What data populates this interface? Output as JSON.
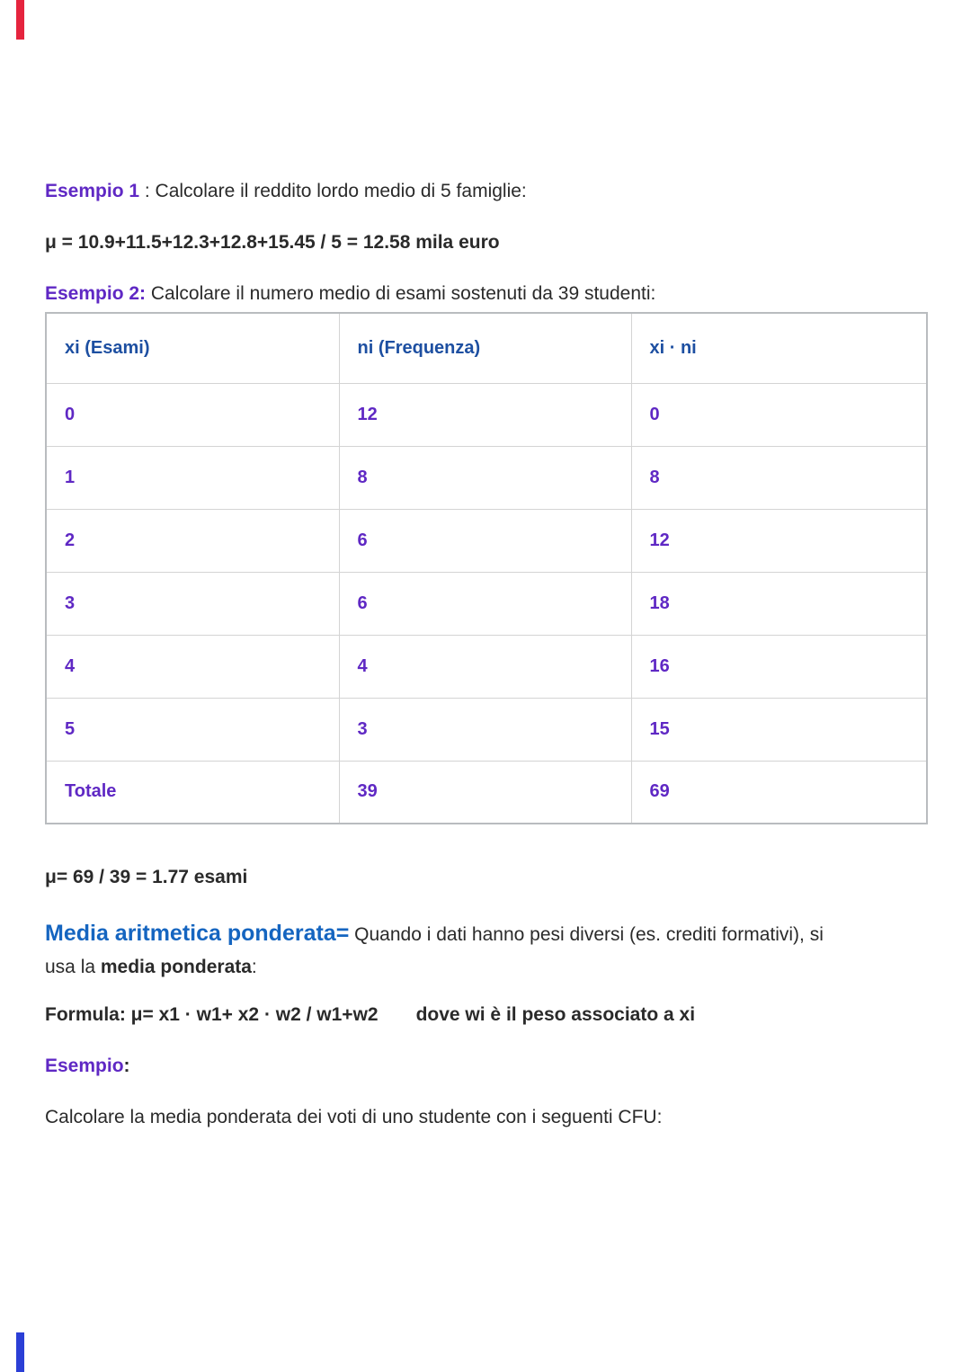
{
  "colors": {
    "purple": "#5f28c4",
    "heading_blue": "#1565c0",
    "table_header_blue": "#1d4fa1",
    "body_text": "#2a2a2a",
    "top_bar_red": "#e5243e",
    "bottom_bar_blue": "#2b3fd6"
  },
  "document": {
    "example1": {
      "label": "Esempio 1",
      "rest": " : Calcolare il reddito lordo medio di 5 famiglie:"
    },
    "formula1": "μ = 10.9+11.5+12.3+12.8+15.45 / 5 = 12.58 mila euro",
    "example2": {
      "label": "Esempio 2:",
      "rest": " Calcolare il numero medio di esami sostenuti da 39 studenti:"
    },
    "table": {
      "headers": [
        "xi (Esami)",
        "ni (Frequenza)",
        "xi · ni"
      ],
      "rows": [
        [
          "0",
          "12",
          "0"
        ],
        [
          "1",
          "8",
          "8"
        ],
        [
          "2",
          "6",
          "12"
        ],
        [
          "3",
          "6",
          "18"
        ],
        [
          "4",
          "4",
          "16"
        ],
        [
          "5",
          "3",
          "15"
        ],
        [
          "Totale",
          "39",
          "69"
        ]
      ]
    },
    "mean_result": "μ= 69 / 39 = 1.77 esami",
    "weighted": {
      "heading": "Media aritmetica ponderata=",
      "line1_text": " Quando i dati hanno pesi diversi (es. crediti formativi), si",
      "line2_pre": "usa la ",
      "bold_term": "media ponderata",
      "line2_post": ":"
    },
    "formula2": {
      "left": "Formula: μ= x1 · w1+ x2 · w2 / w1+w2",
      "right": "dove wi è il peso associato a xi"
    },
    "example3": {
      "label": "Esempio",
      "rest": ":"
    },
    "closing_line": "Calcolare la media ponderata dei voti di uno studente con i seguenti CFU:"
  }
}
